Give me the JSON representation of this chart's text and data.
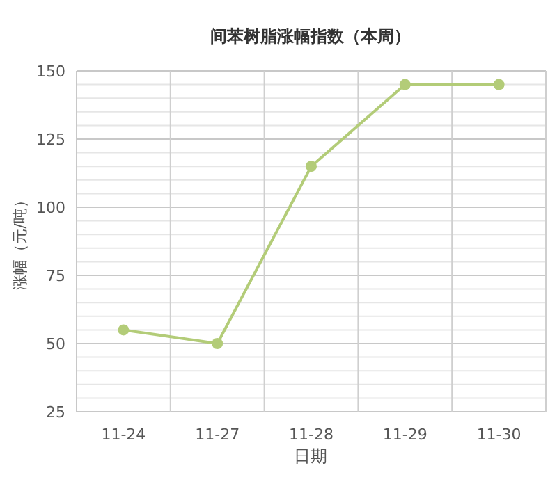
{
  "chart_data": {
    "type": "line",
    "title": "间苯树脂涨幅指数（本周）",
    "xlabel": "日期",
    "ylabel": "涨幅（元/吨）",
    "categories": [
      "11-24",
      "11-27",
      "11-28",
      "11-29",
      "11-30"
    ],
    "series": [
      {
        "color": "#b3cc78",
        "values": [
          55,
          50,
          115,
          145,
          145
        ]
      }
    ],
    "ylim": [
      25,
      150
    ],
    "yticks": [
      25,
      50,
      75,
      100,
      125,
      150
    ],
    "grid": true,
    "marker": "circle",
    "line_style": "solid"
  }
}
